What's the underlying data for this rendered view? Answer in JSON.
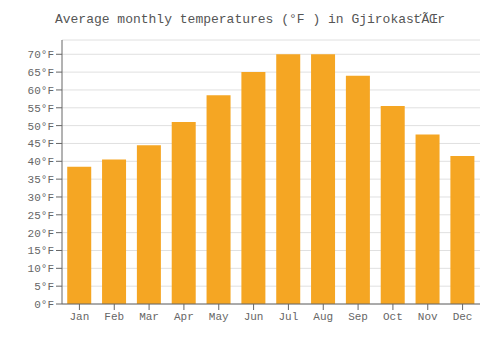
{
  "chart_data": {
    "type": "bar",
    "title": "Average monthly temperatures (°F ) in GjirokasťÃŒr",
    "categories": [
      "Jan",
      "Feb",
      "Mar",
      "Apr",
      "May",
      "Jun",
      "Jul",
      "Aug",
      "Sep",
      "Oct",
      "Nov",
      "Dec"
    ],
    "values": [
      38.5,
      40.5,
      44.5,
      51.0,
      58.5,
      65.0,
      70.0,
      70.0,
      64.0,
      55.5,
      47.5,
      41.5
    ],
    "color": "#F5A623",
    "ylim": [
      0,
      74
    ],
    "yticks": [
      {
        "value": 0,
        "label": "0°F"
      },
      {
        "value": 5,
        "label": "5°F"
      },
      {
        "value": 10,
        "label": "10°F"
      },
      {
        "value": 15,
        "label": "15°F"
      },
      {
        "value": 20,
        "label": "20°F"
      },
      {
        "value": 25,
        "label": "25°F"
      },
      {
        "value": 30,
        "label": "30°F"
      },
      {
        "value": 35,
        "label": "35°F"
      },
      {
        "value": 40,
        "label": "40°F"
      },
      {
        "value": 45,
        "label": "45°F"
      },
      {
        "value": 50,
        "label": "50°F"
      },
      {
        "value": 55,
        "label": "55°F"
      },
      {
        "value": 60,
        "label": "60°F"
      },
      {
        "value": 65,
        "label": "65°F"
      },
      {
        "value": 70,
        "label": "70°F"
      }
    ],
    "grid": true
  }
}
